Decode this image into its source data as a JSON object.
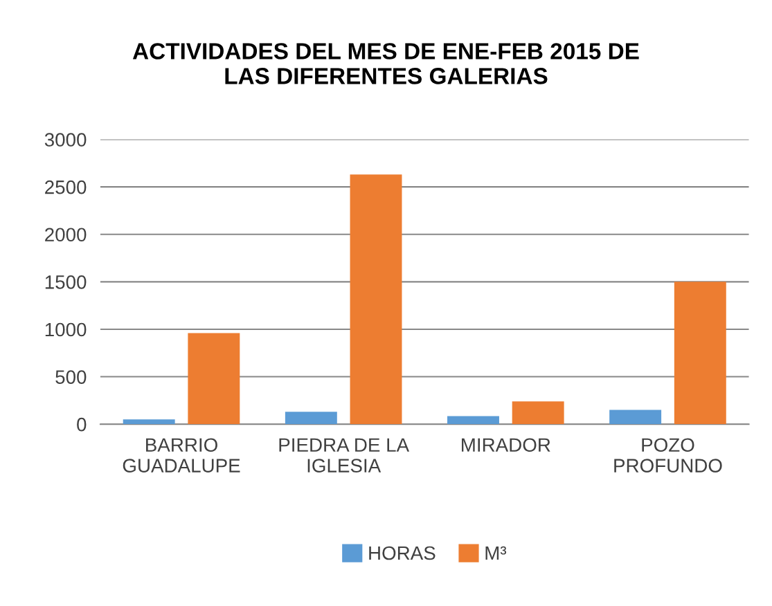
{
  "chart_data": {
    "type": "bar",
    "title": "ACTIVIDADES DEL MES DE ENE-FEB 2015 DE\nLAS DIFERENTES GALERIAS",
    "categories": [
      "BARRIO\nGUADALUPE",
      "PIEDRA DE LA\nIGLESIA",
      "MIRADOR",
      "POZO\nPROFUNDO"
    ],
    "series": [
      {
        "name": "HORAS",
        "color": "#5b9bd5",
        "values": [
          50,
          130,
          85,
          150
        ]
      },
      {
        "name": "M³",
        "color": "#ed7d31",
        "values": [
          960,
          2630,
          240,
          1500
        ]
      }
    ],
    "ylim": [
      0,
      3000
    ],
    "yticks": [
      0,
      500,
      1000,
      1500,
      2000,
      2500,
      3000
    ],
    "grid": "y",
    "legend": "bottom"
  }
}
